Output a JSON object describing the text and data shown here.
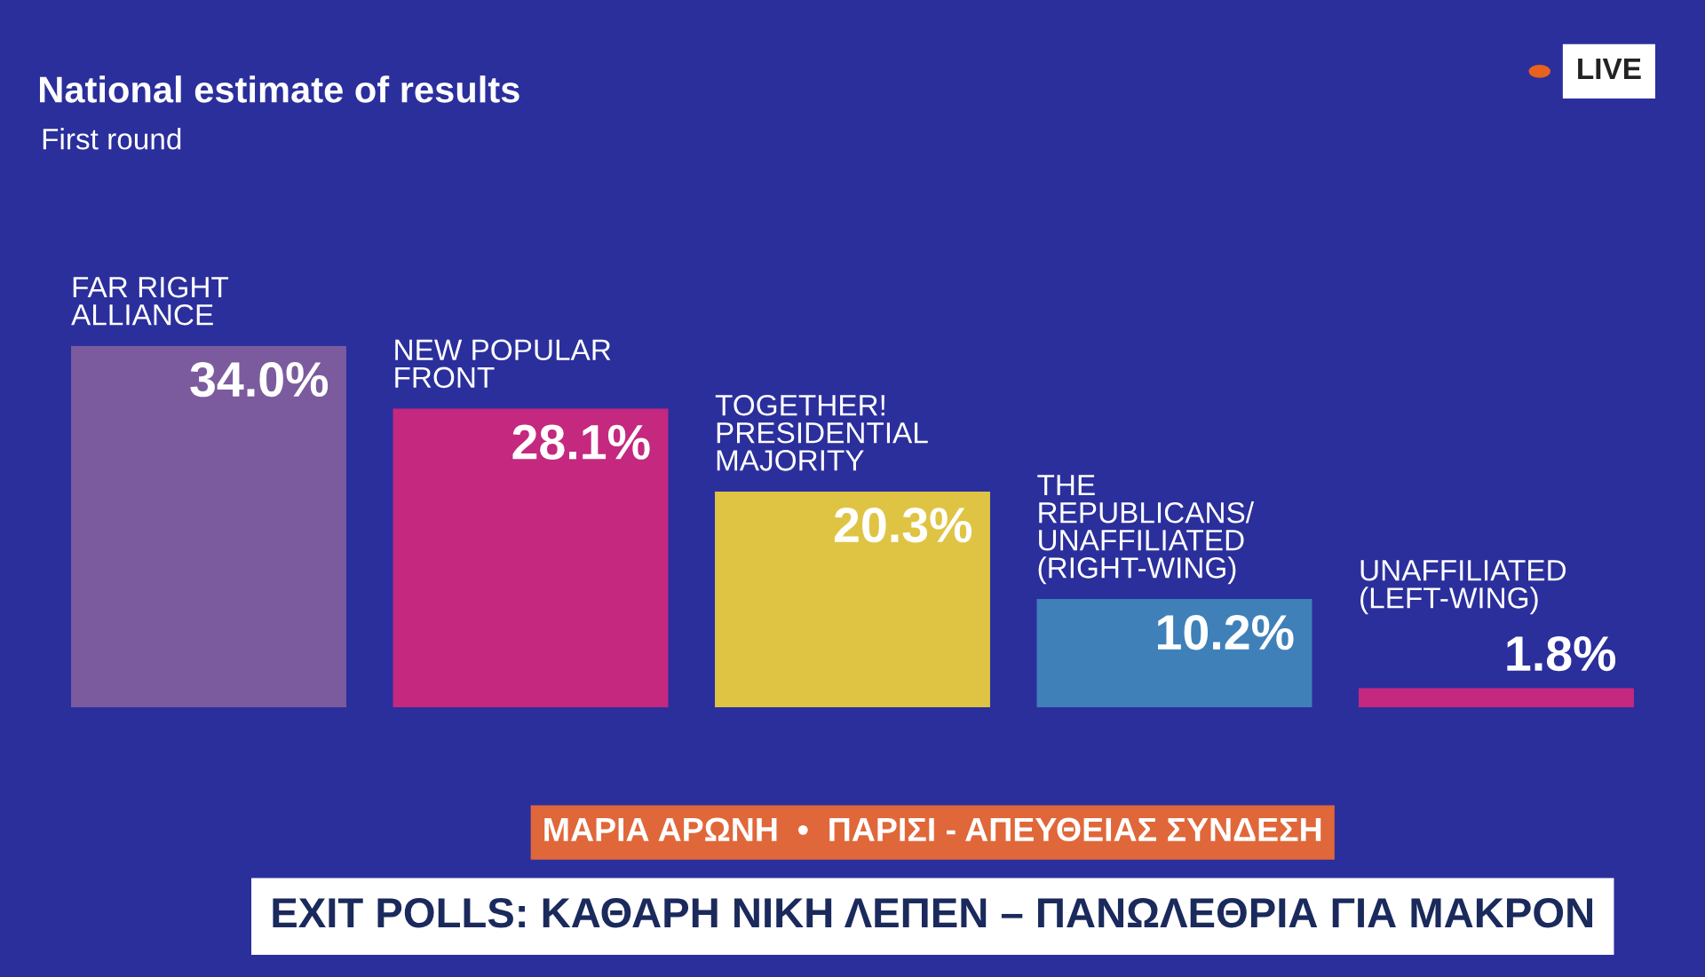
{
  "chart_data": {
    "type": "bar",
    "title": "National estimate of results",
    "subtitle": "First round",
    "categories": [
      "FAR RIGHT\nALLIANCE",
      "NEW POPULAR\nFRONT",
      "TOGETHER!\nPRESIDENTIAL\nMAJORITY",
      "THE\nREPUBLICANS/\nUNAFFILIATED\n(RIGHT-WING)",
      "UNAFFILIATED\n(LEFT-WING)"
    ],
    "values": [
      34.0,
      28.1,
      20.3,
      10.2,
      1.8
    ],
    "colors": [
      "#7b5b9e",
      "#c4287f",
      "#dfc444",
      "#3f80b9",
      "#c4287f"
    ],
    "value_labels": [
      "34.0%",
      "28.1%",
      "20.3%",
      "10.2%",
      "1.8%"
    ],
    "annotations": [
      "LIVE",
      "ΜΑΡΙΑ ΑΡΩΝΗ  •  ΠΑΡΙΣΙ - ΑΠΕΥΘΕΙΑΣ ΣΥΝΔΕΣΗ",
      "EXIT POLLS: ΚΑΘΑΡΗ ΝΙΚΗ ΛΕΠΕΝ – ΠΑΝΩΛΕΘΡΙΑ ΓΙΑ ΜΑΚΡΟΝ"
    ]
  }
}
